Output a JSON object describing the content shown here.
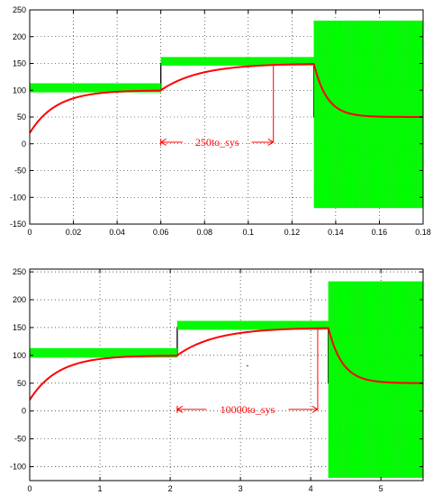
{
  "chart_data": [
    {
      "type": "line",
      "title": "",
      "xlabel": "",
      "ylabel": "",
      "xlim": [
        0,
        0.18
      ],
      "ylim": [
        -150,
        250
      ],
      "xticks": [
        0,
        0.02,
        0.04,
        0.06,
        0.08,
        0.1,
        0.12,
        0.14,
        0.16,
        0.18
      ],
      "xtick_labels": [
        "0",
        "0.02",
        "0.04",
        "0.06",
        "0.08",
        "0.1",
        "0.12",
        "0.14",
        "0.16",
        "0.18"
      ],
      "yticks": [
        -150,
        -100,
        -50,
        0,
        50,
        100,
        150,
        200,
        250
      ],
      "ytick_labels": [
        "-150",
        "-100",
        "-50",
        "0",
        "50",
        "100",
        "150",
        "200",
        "250"
      ],
      "grid": true,
      "series": [
        {
          "color": "#000000",
          "style": "step",
          "x": [
            0,
            0.06,
            0.06,
            0.13,
            0.13,
            0.18
          ],
          "y": [
            100,
            100,
            150,
            150,
            50,
            50
          ]
        },
        {
          "color": "#00ff00",
          "style": "band",
          "segments": [
            {
              "x": [
                0,
                0.06
              ],
              "y_low": 96,
              "y_high": 113
            },
            {
              "x": [
                0.06,
                0.13
              ],
              "y_low": 146,
              "y_high": 162
            },
            {
              "x": [
                0.13,
                0.18
              ],
              "y_low": -120,
              "y_high": 230
            }
          ]
        },
        {
          "color": "#ff0000",
          "style": "first-order-response",
          "segments": [
            {
              "x_start": 0,
              "x_end": 0.06,
              "y_start": 20,
              "y_final": 100,
              "tau": 0.012
            },
            {
              "x_start": 0.06,
              "x_end": 0.13,
              "y_start": 100,
              "y_final": 150,
              "tau": 0.018
            },
            {
              "x_start": 0.13,
              "x_end": 0.18,
              "y_start": 150,
              "y_final": 50,
              "tau": 0.006
            }
          ]
        }
      ],
      "annotations": [
        {
          "text": "250to_sys",
          "x_from": 0.06,
          "x_to": 0.1115,
          "y": 3,
          "color": "#ff0000",
          "guide_x": 0.1115,
          "guide_y_from": 3,
          "guide_y_to": 148
        }
      ]
    },
    {
      "type": "line",
      "title": "",
      "xlabel": "",
      "ylabel": "",
      "xlim": [
        0,
        5.6
      ],
      "ylim": [
        -125,
        255
      ],
      "xticks": [
        0,
        1,
        2,
        3,
        4,
        5
      ],
      "xtick_labels": [
        "0",
        "1",
        "2",
        "3",
        "4",
        "5"
      ],
      "yticks": [
        -100,
        -50,
        0,
        50,
        100,
        150,
        200,
        250
      ],
      "ytick_labels": [
        "-100",
        "-50",
        "0",
        "50",
        "100",
        "150",
        "200",
        "250"
      ],
      "grid": true,
      "series": [
        {
          "color": "#000000",
          "style": "step",
          "x": [
            0,
            2.1,
            2.1,
            4.25,
            4.25,
            5.6
          ],
          "y": [
            100,
            100,
            150,
            150,
            50,
            50
          ]
        },
        {
          "color": "#00ff00",
          "style": "band",
          "segments": [
            {
              "x": [
                0,
                2.1
              ],
              "y_low": 96,
              "y_high": 113
            },
            {
              "x": [
                2.1,
                4.25
              ],
              "y_low": 146,
              "y_high": 162
            },
            {
              "x": [
                4.25,
                5.6
              ],
              "y_low": -120,
              "y_high": 233
            }
          ]
        },
        {
          "color": "#ff0000",
          "style": "first-order-response",
          "segments": [
            {
              "x_start": 0,
              "x_end": 2.1,
              "y_start": 20,
              "y_final": 100,
              "tau": 0.4
            },
            {
              "x_start": 2.1,
              "x_end": 4.25,
              "y_start": 100,
              "y_final": 150,
              "tau": 0.55
            },
            {
              "x_start": 4.25,
              "x_end": 5.6,
              "y_start": 150,
              "y_final": 50,
              "tau": 0.2
            }
          ]
        }
      ],
      "annotations": [
        {
          "text": "10000to_sys",
          "x_from": 2.1,
          "x_to": 4.1,
          "y": 3,
          "color": "#ff0000",
          "guide_x": 4.1,
          "guide_y_from": 3,
          "guide_y_to": 148
        },
        {
          "text": "-",
          "x": 3.1,
          "y": 77,
          "color": "#000000"
        }
      ]
    }
  ]
}
